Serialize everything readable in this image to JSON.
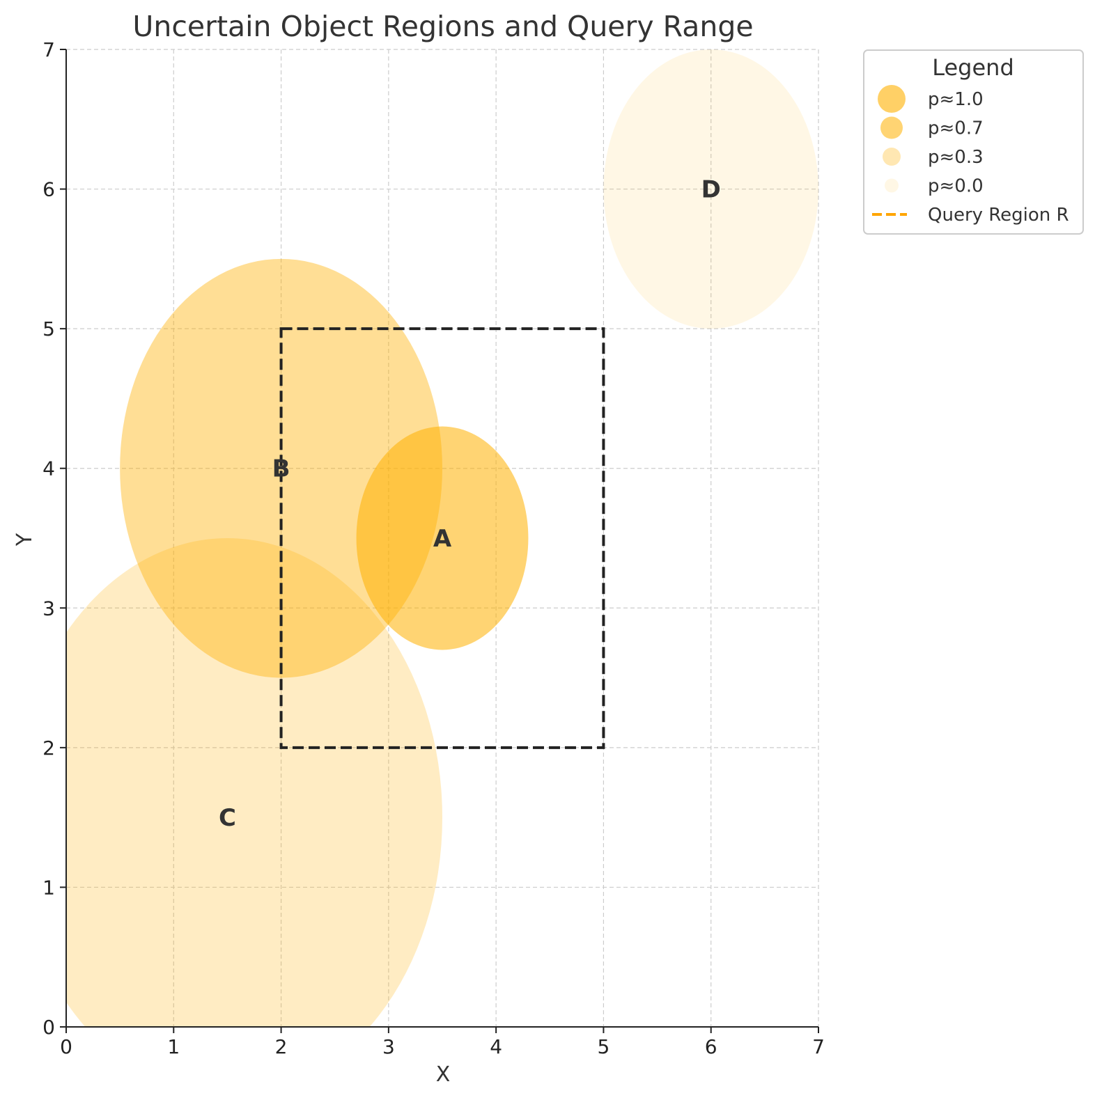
{
  "chart_data": {
    "type": "scatter",
    "title": "Uncertain Object Regions and Query Range",
    "xlabel": "X",
    "ylabel": "Y",
    "xlim": [
      0,
      7
    ],
    "ylim": [
      0,
      7
    ],
    "xticks": [
      0,
      1,
      2,
      3,
      4,
      5,
      6,
      7
    ],
    "yticks": [
      0,
      1,
      2,
      3,
      4,
      5,
      6,
      7
    ],
    "grid": true,
    "objects": [
      {
        "label": "A",
        "cx": 3.5,
        "cy": 3.5,
        "rx": 0.8,
        "ry": 0.8,
        "probability": 1.0
      },
      {
        "label": "B",
        "cx": 2.0,
        "cy": 4.0,
        "rx": 1.5,
        "ry": 1.5,
        "probability": 0.7
      },
      {
        "label": "C",
        "cx": 1.5,
        "cy": 1.5,
        "rx": 2.0,
        "ry": 2.0,
        "probability": 0.3
      },
      {
        "label": "D",
        "cx": 6.0,
        "cy": 6.0,
        "rx": 1.0,
        "ry": 1.0,
        "probability": 0.0
      }
    ],
    "query_region": {
      "x_min": 2,
      "x_max": 5,
      "y_min": 2,
      "y_max": 5
    },
    "legend": {
      "title": "Legend",
      "position": "outside-top-right",
      "entries": [
        {
          "label": "p≈1.0",
          "kind": "marker",
          "opacity": 0.6
        },
        {
          "label": "p≈0.7",
          "kind": "marker",
          "opacity": 0.55
        },
        {
          "label": "p≈0.3",
          "kind": "marker",
          "opacity": 0.3
        },
        {
          "label": "p≈0.0",
          "kind": "marker",
          "opacity": 0.1
        },
        {
          "label": "Query Region R",
          "kind": "dashed-line",
          "color": "#FFA500"
        }
      ]
    },
    "colors": {
      "region_fill": "#FFB000",
      "query_stroke": "#222222",
      "legend_line": "#FFA500"
    }
  }
}
